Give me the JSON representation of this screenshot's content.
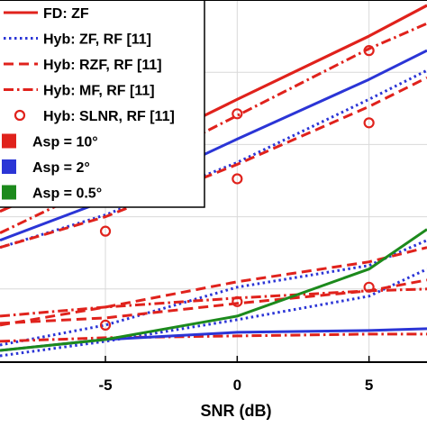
{
  "chart_data": {
    "type": "line",
    "xlabel": "SNR (dB)",
    "ylabel": "",
    "xlim": [
      -9,
      7.2
    ],
    "ylim": [
      0,
      10
    ],
    "x_ticks": [
      -5,
      0,
      5
    ],
    "grid": true,
    "legend_position": "top-left",
    "series": [
      {
        "name": "FD: ZF",
        "style": "solid",
        "color": "#e0221c",
        "groups": [
          {
            "x": [
              -9,
              -5,
              0,
              5,
              7.2
            ],
            "y": [
              4.15,
              5.45,
              7.25,
              9.0,
              9.85
            ]
          }
        ]
      },
      {
        "name": "Hyb: ZF, RF [11]",
        "style": "dotted",
        "color": "#2b35d6",
        "groups": [
          {
            "x": [
              -9,
              -5,
              0,
              5,
              7.2
            ],
            "y": [
              3.15,
              4.05,
              5.5,
              7.25,
              8.05
            ]
          },
          {
            "x": [
              -9,
              -5,
              0,
              5,
              7.2
            ],
            "y": [
              0.45,
              1.0,
              2.05,
              2.65,
              3.35
            ]
          },
          {
            "x": [
              -9,
              -5,
              0,
              5,
              7.2
            ],
            "y": [
              0.15,
              0.55,
              1.15,
              1.8,
              2.55
            ]
          }
        ]
      },
      {
        "name": "Hyb: RZF, RF [11]",
        "style": "dashed",
        "color": "#e0221c",
        "groups": [
          {
            "x": [
              -9,
              -5,
              0,
              5,
              7.2
            ],
            "y": [
              3.15,
              4.0,
              5.45,
              7.05,
              7.85
            ]
          },
          {
            "x": [
              -9,
              -5,
              0,
              5,
              7.2
            ],
            "y": [
              1.0,
              1.5,
              2.2,
              2.75,
              3.15
            ]
          },
          {
            "x": [
              -9,
              -5,
              0,
              5,
              7.2
            ],
            "y": [
              1.05,
              1.2,
              1.6,
              1.95,
              2.25
            ]
          }
        ]
      },
      {
        "name": "Hyb: MF, RF [11]",
        "style": "dashdot",
        "color": "#e0221c",
        "groups": [
          {
            "x": [
              -9,
              -5,
              0,
              5,
              7.2
            ],
            "y": [
              3.55,
              4.95,
              6.8,
              8.65,
              9.35
            ]
          },
          {
            "x": [
              -9,
              -5,
              0,
              5,
              7.2
            ],
            "y": [
              1.25,
              1.5,
              1.75,
              1.95,
              2.0
            ]
          },
          {
            "x": [
              -9,
              -5,
              0,
              5,
              7.2
            ],
            "y": [
              0.55,
              0.65,
              0.7,
              0.75,
              0.75
            ]
          }
        ]
      },
      {
        "name": "Hyb: SLNR, RF [11]",
        "style": "markers",
        "color": "#e0221c",
        "groups": [
          {
            "x": [
              -5,
              0,
              5
            ],
            "y": [
              4.95,
              6.85,
              8.6
            ]
          },
          {
            "x": [
              -5,
              0,
              5
            ],
            "y": [
              3.6,
              5.05,
              6.6
            ]
          },
          {
            "x": [
              -5,
              0,
              5
            ],
            "y": [
              1.0,
              1.65,
              2.05
            ]
          }
        ]
      },
      {
        "name": "Asp = 10°",
        "style": "patch",
        "color": "#e0221c",
        "groups": [
          {
            "x": [
              -9,
              -5,
              0,
              5,
              7.2
            ],
            "y": [
              4.15,
              5.45,
              7.25,
              9.0,
              9.85
            ]
          }
        ]
      },
      {
        "name": "Asp = 2°",
        "style": "patch",
        "color": "#2b35d6",
        "groups": [
          {
            "x": [
              -9,
              -5,
              0,
              5,
              7.2
            ],
            "y": [
              3.35,
              4.45,
              6.15,
              7.8,
              8.6
            ]
          },
          {
            "x": [
              -9,
              -5,
              0,
              5,
              7.2
            ],
            "y": [
              0.3,
              0.6,
              0.8,
              0.85,
              0.9
            ]
          }
        ]
      },
      {
        "name": "Asp = 0.5°",
        "style": "patch",
        "color": "#1c8a1c",
        "groups": [
          {
            "x": [
              -9,
              -5,
              0,
              5,
              7.2
            ],
            "y": [
              0.3,
              0.6,
              1.25,
              2.55,
              3.65
            ]
          }
        ]
      }
    ]
  }
}
